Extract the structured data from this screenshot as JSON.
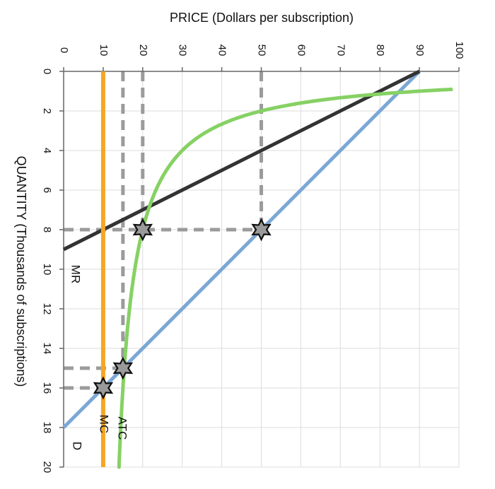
{
  "chart_data": {
    "type": "line",
    "title": "",
    "xlabel": "QUANTITY (Thousands of subscriptions)",
    "ylabel": "PRICE (Dollars per subscription)",
    "orientation": "rotated 90° clockwise: quantity runs top-to-bottom on the left axis, price runs left-to-right along the top",
    "xlim": [
      0,
      20
    ],
    "ylim": [
      0,
      100
    ],
    "x_ticks": [
      "0",
      "2",
      "4",
      "6",
      "8",
      "10",
      "12",
      "14",
      "16",
      "18",
      "20"
    ],
    "y_ticks": [
      "0",
      "10",
      "20",
      "30",
      "40",
      "50",
      "60",
      "70",
      "80",
      "90",
      "100"
    ],
    "grid": true,
    "series": [
      {
        "name": "D",
        "color": "#7ba7d6",
        "points": [
          [
            0,
            90
          ],
          [
            18,
            0
          ]
        ]
      },
      {
        "name": "MR",
        "color": "#333333",
        "points": [
          [
            0,
            90
          ],
          [
            9,
            0
          ]
        ]
      },
      {
        "name": "MC",
        "color": "#f5a623",
        "points": [
          [
            0,
            10
          ],
          [
            20,
            10
          ]
        ]
      },
      {
        "name": "ATC",
        "color": "#86d164",
        "formula": "10 + 80/q",
        "q_range": [
          0.9,
          20
        ]
      }
    ],
    "markers": [
      {
        "x": 8,
        "y": 50
      },
      {
        "x": 8,
        "y": 20
      },
      {
        "x": 15,
        "y": 15
      },
      {
        "x": 16,
        "y": 10
      }
    ],
    "reference_lines": [
      {
        "axis": "price",
        "value": 10,
        "from_q": 0,
        "to_q": 16
      },
      {
        "axis": "price",
        "value": 15,
        "from_q": 0,
        "to_q": 15
      },
      {
        "axis": "price",
        "value": 20,
        "from_q": 0,
        "to_q": 8
      },
      {
        "axis": "price",
        "value": 50,
        "from_q": 0,
        "to_q": 8
      },
      {
        "axis": "quantity",
        "value": 8,
        "from_p": 0,
        "to_p": 50
      },
      {
        "axis": "quantity",
        "value": 15,
        "from_p": 0,
        "to_p": 15
      },
      {
        "axis": "quantity",
        "value": 16,
        "from_p": 0,
        "to_p": 10
      }
    ],
    "colors": {
      "grid": "#dcdcdc",
      "reference": "#9b9b9b",
      "marker_fill": "#9a9a9a"
    }
  }
}
